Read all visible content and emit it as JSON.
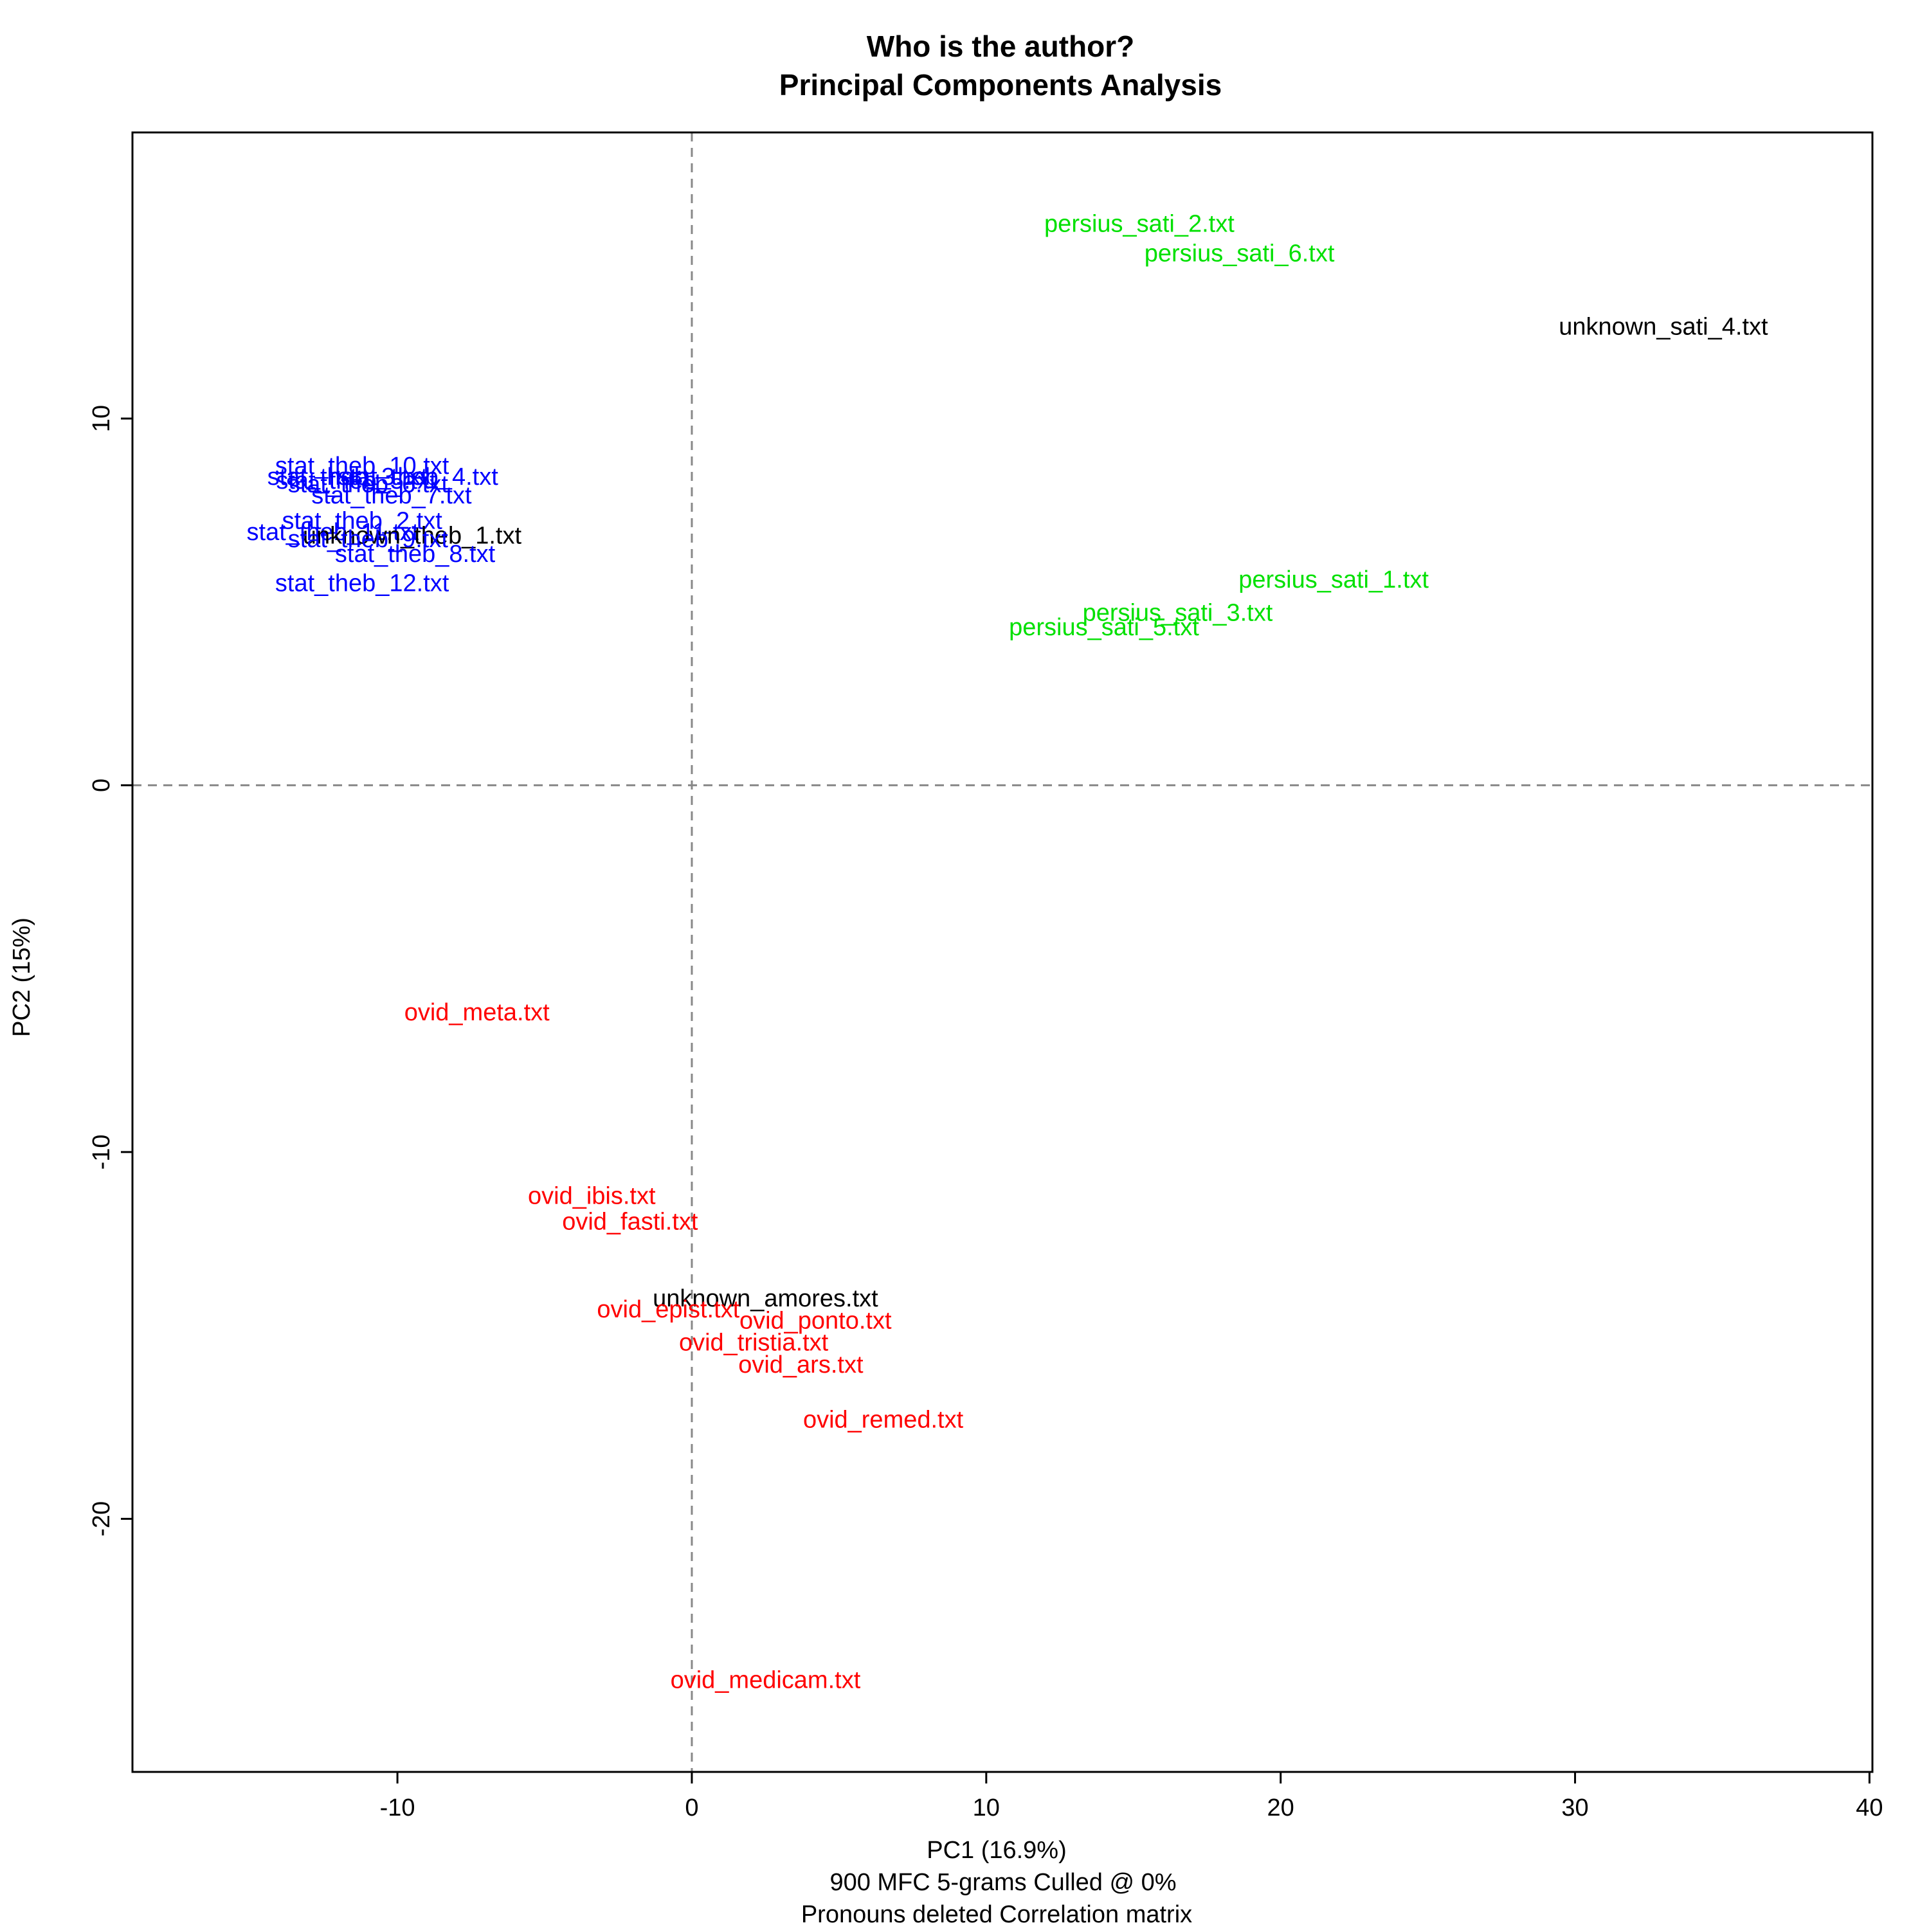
{
  "chart_data": {
    "type": "scatter",
    "title": "Who is the author?",
    "subtitle": "Principal Components Analysis",
    "xlabel": "PC1 (16.9%)",
    "ylabel": "PC2 (15%)",
    "caption": [
      "900 MFC 5-grams Culled @ 0%",
      "Pronouns deleted Correlation matrix"
    ],
    "xlim": [
      -19.0,
      40.1
    ],
    "ylim": [
      -26.9,
      17.8
    ],
    "xticks": [
      -10,
      0,
      10,
      20,
      30,
      40
    ],
    "yticks": [
      -20,
      -10,
      0,
      10
    ],
    "reference_lines": {
      "x": 0,
      "y": 0,
      "style": "dashed"
    },
    "grid": false,
    "colors": {
      "stat": "#0000ff",
      "persius": "#00e000",
      "ovid": "#ff0000",
      "unknown": "#000000"
    },
    "points": [
      {
        "label": "persius_sati_2.txt",
        "x": 15.2,
        "y": 15.3,
        "group": "persius"
      },
      {
        "label": "persius_sati_6.txt",
        "x": 18.6,
        "y": 14.5,
        "group": "persius"
      },
      {
        "label": "unknown_sati_4.txt",
        "x": 33.0,
        "y": 12.5,
        "group": "unknown"
      },
      {
        "label": "persius_sati_1.txt",
        "x": 21.8,
        "y": 5.6,
        "group": "persius"
      },
      {
        "label": "persius_sati_3.txt",
        "x": 16.5,
        "y": 4.7,
        "group": "persius"
      },
      {
        "label": "persius_sati_5.txt",
        "x": 14.0,
        "y": 4.3,
        "group": "persius"
      },
      {
        "label": "stat_theb_10.txt",
        "x": -11.2,
        "y": 8.7,
        "group": "stat"
      },
      {
        "label": "stat_theb_4.txt",
        "x": -9.3,
        "y": 8.4,
        "group": "stat"
      },
      {
        "label": "stat_theb_3.txt",
        "x": -11.7,
        "y": 8.4,
        "group": "stat"
      },
      {
        "label": "stat_theb_5.txt",
        "x": -11.4,
        "y": 8.3,
        "group": "stat"
      },
      {
        "label": "stat_theb_6.txt",
        "x": -11.0,
        "y": 8.2,
        "group": "stat"
      },
      {
        "label": "stat_theb_7.txt",
        "x": -10.2,
        "y": 7.9,
        "group": "stat"
      },
      {
        "label": "stat_theb_2.txt",
        "x": -11.2,
        "y": 7.2,
        "group": "stat"
      },
      {
        "label": "stat_theb_11.txt",
        "x": -12.2,
        "y": 6.9,
        "group": "stat"
      },
      {
        "label": "unknown_theb_1.txt",
        "x": -9.5,
        "y": 6.8,
        "group": "unknown"
      },
      {
        "label": "stat_theb_9.txt",
        "x": -11.0,
        "y": 6.7,
        "group": "stat"
      },
      {
        "label": "stat_theb_8.txt",
        "x": -9.4,
        "y": 6.3,
        "group": "stat"
      },
      {
        "label": "stat_theb_12.txt",
        "x": -11.2,
        "y": 5.5,
        "group": "stat"
      },
      {
        "label": "ovid_meta.txt",
        "x": -7.3,
        "y": -6.2,
        "group": "ovid"
      },
      {
        "label": "ovid_ibis.txt",
        "x": -3.4,
        "y": -11.2,
        "group": "ovid"
      },
      {
        "label": "ovid_fasti.txt",
        "x": -2.1,
        "y": -11.9,
        "group": "ovid"
      },
      {
        "label": "unknown_amores.txt",
        "x": 2.5,
        "y": -14.0,
        "group": "unknown"
      },
      {
        "label": "ovid_epist.txt",
        "x": -0.8,
        "y": -14.3,
        "group": "ovid"
      },
      {
        "label": "ovid_ponto.txt",
        "x": 4.2,
        "y": -14.6,
        "group": "ovid"
      },
      {
        "label": "ovid_tristia.txt",
        "x": 2.1,
        "y": -15.2,
        "group": "ovid"
      },
      {
        "label": "ovid_ars.txt",
        "x": 3.7,
        "y": -15.8,
        "group": "ovid"
      },
      {
        "label": "ovid_remed.txt",
        "x": 6.5,
        "y": -17.3,
        "group": "ovid"
      },
      {
        "label": "ovid_medicam.txt",
        "x": 2.5,
        "y": -24.4,
        "group": "ovid"
      }
    ]
  }
}
